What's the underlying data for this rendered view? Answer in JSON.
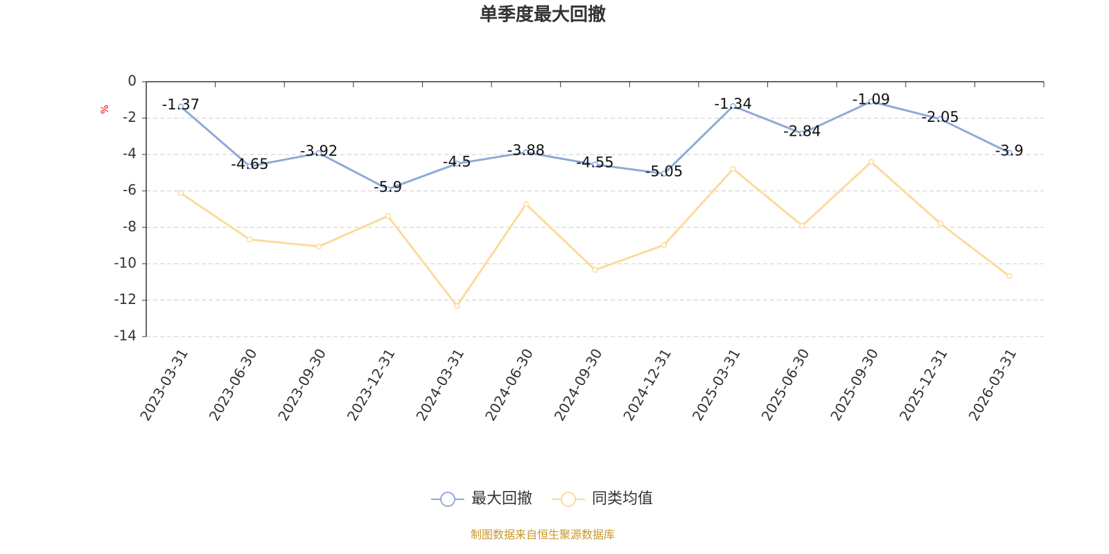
{
  "chart_data": {
    "type": "line",
    "title": "单季度最大回撤",
    "y_label": "%",
    "categories": [
      "2023-03-31",
      "2023-06-30",
      "2023-09-30",
      "2023-12-31",
      "2024-03-31",
      "2024-06-30",
      "2024-09-30",
      "2024-12-31",
      "2025-03-31",
      "2025-06-30",
      "2025-09-30",
      "2025-12-31",
      "2026-03-31"
    ],
    "series": [
      {
        "name": "最大回撤",
        "color": "#8eaad6",
        "values": [
          -1.37,
          -4.65,
          -3.92,
          -5.9,
          -4.5,
          -3.88,
          -4.55,
          -5.05,
          -1.34,
          -2.84,
          -1.09,
          -2.05,
          -3.9
        ],
        "labels": true
      },
      {
        "name": "同类均值",
        "color": "#fbdb9b",
        "values": [
          -6.12,
          -8.67,
          -9.05,
          -7.38,
          -12.32,
          -6.73,
          -10.34,
          -8.97,
          -4.79,
          -7.91,
          -4.41,
          -7.79,
          -10.68
        ],
        "labels": false
      }
    ],
    "ylim": [
      -14,
      0
    ],
    "yticks": [
      0,
      -2,
      -4,
      -6,
      -8,
      -10,
      -12,
      -14
    ],
    "grid": true,
    "source": "制图数据来自恒生聚源数据库"
  }
}
